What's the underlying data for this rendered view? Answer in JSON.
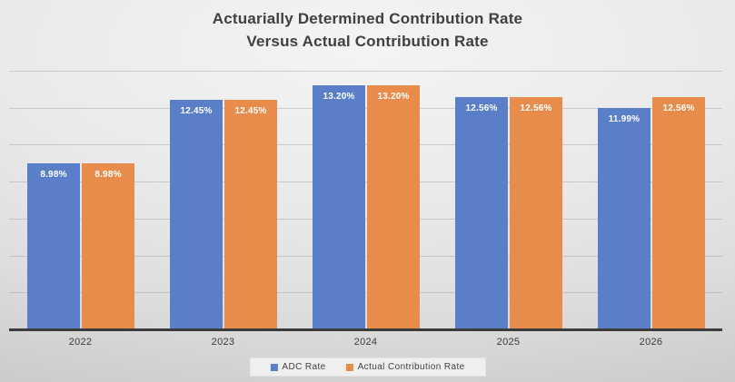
{
  "chart_data": {
    "type": "bar",
    "title": "Actuarially Determined Contribution Rate Versus Actual Contribution Rate",
    "title_lines": [
      "Actuarially Determined Contribution Rate",
      "Versus Actual Contribution Rate"
    ],
    "categories": [
      "2022",
      "2023",
      "2024",
      "2025",
      "2026"
    ],
    "series": [
      {
        "name": "ADC Rate",
        "color": "#5a7ec7",
        "values": [
          8.98,
          12.45,
          13.2,
          12.56,
          11.99
        ],
        "data_labels": [
          "8.98%",
          "12.45%",
          "13.20%",
          "12.56%",
          "11.99%"
        ]
      },
      {
        "name": "Actual Contribution Rate",
        "color": "#e88c4c",
        "values": [
          8.98,
          12.45,
          13.2,
          12.56,
          12.56
        ],
        "data_labels": [
          "8.98%",
          "12.45%",
          "13.20%",
          "12.56%",
          "12.56%"
        ]
      }
    ],
    "xlabel": "",
    "ylabel": "",
    "ylim": [
      0,
      14
    ],
    "gridline_step": 2,
    "grid": true,
    "y_tick_labels_visible": false,
    "legend_position": "bottom",
    "data_label_color": "#ffffff",
    "axis_line_color": "#3c3c3c",
    "title_color": "#404040"
  }
}
